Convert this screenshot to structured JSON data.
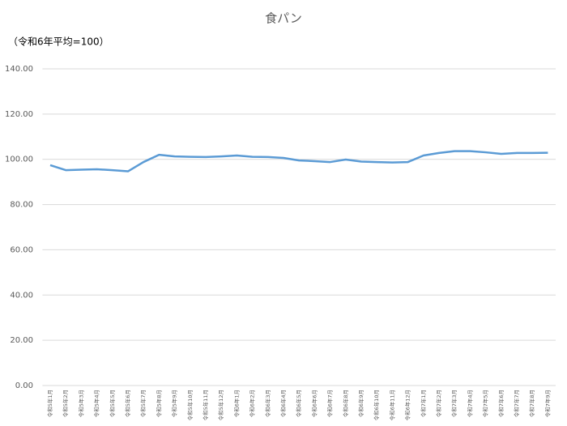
{
  "chart_data": {
    "type": "line",
    "title": "食パン",
    "subtitle": "（令和6年平均=100）",
    "categories": [
      "令和5年1月",
      "令和5年2月",
      "令和5年3月",
      "令和5年4月",
      "令和5年5月",
      "令和5年6月",
      "令和5年7月",
      "令和5年8月",
      "令和5年9月",
      "令和5年10月",
      "令和5年11月",
      "令和5年12月",
      "令和6年1月",
      "令和6年2月",
      "令和6年3月",
      "令和6年4月",
      "令和6年5月",
      "令和6年6月",
      "令和6年7月",
      "令和6年8月",
      "令和6年9月",
      "令和6年10月",
      "令和6年11月",
      "令和6年12月",
      "令和7年1月",
      "令和7年2月",
      "令和7年3月",
      "令和7年4月",
      "令和7年5月",
      "令和7年6月",
      "令和7年7月",
      "令和7年8月",
      "令和7年9月"
    ],
    "series": [
      {
        "name": "食パン",
        "color": "#5b9bd5",
        "values": [
          97.4,
          95.2,
          95.4,
          95.6,
          95.2,
          94.7,
          98.8,
          102.0,
          101.3,
          101.1,
          101.0,
          101.3,
          101.7,
          101.1,
          101.0,
          100.6,
          99.5,
          99.2,
          98.8,
          99.9,
          99.0,
          98.8,
          98.6,
          98.8,
          101.7,
          102.8,
          103.6,
          103.6,
          103.1,
          102.4,
          102.8,
          102.8,
          102.9
        ]
      }
    ],
    "ylim": [
      0,
      140
    ],
    "yticks": [
      {
        "value": 0,
        "label": "0.00"
      },
      {
        "value": 20,
        "label": "20.00"
      },
      {
        "value": 40,
        "label": "40.00"
      },
      {
        "value": 60,
        "label": "60.00"
      },
      {
        "value": 80,
        "label": "80.00"
      },
      {
        "value": 100,
        "label": "100.00"
      },
      {
        "value": 120,
        "label": "120.00"
      },
      {
        "value": 140,
        "label": "140.00"
      }
    ],
    "grid": true
  }
}
